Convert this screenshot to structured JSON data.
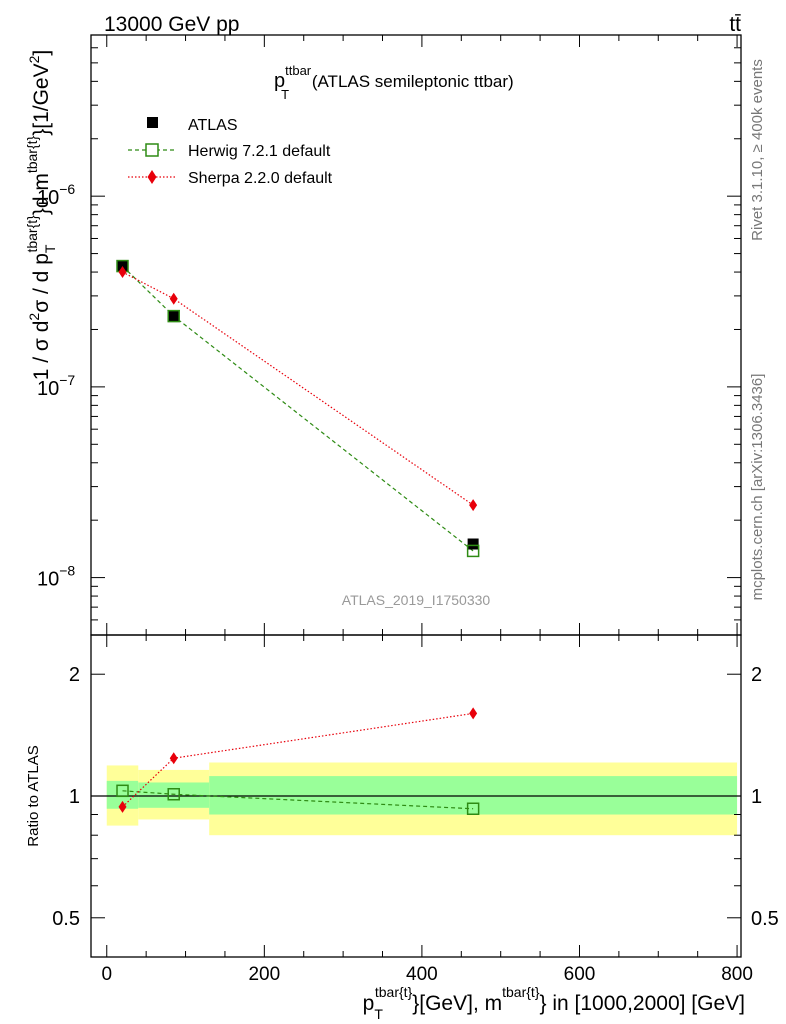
{
  "header": {
    "left": "13000 GeV pp",
    "right": "tt̄"
  },
  "side_labels": {
    "rivet": "Rivet 3.1.10, ≥ 400k events",
    "mcplots": "mcplots.cern.ch [arXiv:1306.3436]"
  },
  "colors": {
    "atlas": "#000000",
    "herwig": "#2e8b14",
    "sherpa": "#e8000b",
    "band_inner": "#99ff99",
    "band_outer": "#ffff99"
  },
  "chart_data": [
    {
      "type": "scatter",
      "name": "main",
      "title_main": "p",
      "title_sup": "ttbar",
      "title_sub": "T",
      "title_rest": " (ATLAS semileptonic ttbar)",
      "watermark": "ATLAS_2019_I1750330",
      "yscale": "log",
      "ylim": [
        5e-09,
        7e-06
      ],
      "xlim": [
        -20,
        805
      ],
      "ylabel": "1 / σ d²σ / d p_T^{tbar{t}} d m^{tbar{t}} [1/GeV²]",
      "ytick_labels": [
        {
          "value": 1e-06,
          "base": "10",
          "exp": "−6"
        },
        {
          "value": 1e-07,
          "base": "10",
          "exp": "−7"
        },
        {
          "value": 1e-08,
          "base": "10",
          "exp": "−8"
        }
      ],
      "legend": [
        {
          "key": "atlas",
          "label": "ATLAS"
        },
        {
          "key": "herwig",
          "label": "Herwig 7.2.1 default"
        },
        {
          "key": "sherpa",
          "label": "Sherpa 2.2.0 default"
        }
      ],
      "series": [
        {
          "key": "atlas",
          "name": "ATLAS",
          "x": [
            20,
            85,
            465
          ],
          "y": [
            4.3e-07,
            2.35e-07,
            1.5e-08
          ]
        },
        {
          "key": "herwig",
          "name": "Herwig 7.2.1 default",
          "x": [
            20,
            85,
            465
          ],
          "y": [
            4.3e-07,
            2.35e-07,
            1.38e-08
          ]
        },
        {
          "key": "sherpa",
          "name": "Sherpa 2.2.0 default",
          "x": [
            20,
            85,
            465
          ],
          "y": [
            4e-07,
            2.9e-07,
            2.4e-08
          ]
        }
      ]
    },
    {
      "type": "scatter",
      "name": "ratio",
      "ylabel": "Ratio to ATLAS",
      "yscale": "log",
      "ylim": [
        0.4,
        2.5
      ],
      "xlim": [
        -20,
        805
      ],
      "ytick_labels": [
        {
          "value": 2,
          "label": "2"
        },
        {
          "value": 1,
          "label": "1"
        },
        {
          "value": 0.5,
          "label": "0.5"
        }
      ],
      "xtick_labels": [
        {
          "value": 0,
          "label": "0"
        },
        {
          "value": 200,
          "label": "200"
        },
        {
          "value": 400,
          "label": "400"
        },
        {
          "value": 600,
          "label": "600"
        },
        {
          "value": 800,
          "label": "800"
        }
      ],
      "xlabel": "p_T^{tbar{t}} [GeV], m^{tbar{t}} in [1000,2000] [GeV]",
      "bands": [
        {
          "x0": 0,
          "x1": 40,
          "inner": [
            0.93,
            1.09
          ],
          "outer": [
            0.845,
            1.19
          ]
        },
        {
          "x0": 40,
          "x1": 130,
          "inner": [
            0.935,
            1.08
          ],
          "outer": [
            0.875,
            1.16
          ]
        },
        {
          "x0": 130,
          "x1": 800,
          "inner": [
            0.9,
            1.12
          ],
          "outer": [
            0.8,
            1.21
          ]
        }
      ],
      "series": [
        {
          "key": "herwig",
          "name": "Herwig 7.2.1 default",
          "x": [
            20,
            85,
            465
          ],
          "y": [
            1.03,
            1.01,
            0.93
          ]
        },
        {
          "key": "sherpa",
          "name": "Sherpa 2.2.0 default",
          "x": [
            20,
            85,
            465
          ],
          "y": [
            0.94,
            1.24,
            1.6
          ]
        }
      ]
    }
  ]
}
